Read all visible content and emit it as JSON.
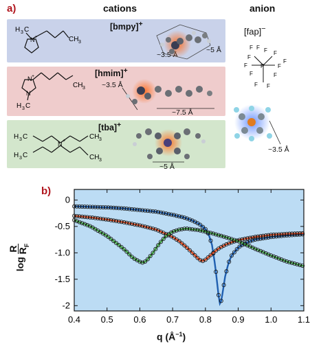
{
  "panel_a": {
    "label": "a)",
    "cations_header": "cations",
    "anion_header": "anion",
    "cations": [
      {
        "name": "[bmpy]",
        "charge": "+",
        "dims": [
          "~3.5 Å",
          "~5 Å"
        ],
        "band_color": "#c9d2ea"
      },
      {
        "name": "[hmim]",
        "charge": "+",
        "dims": [
          "~3.5 Å",
          "~7.5 Å"
        ],
        "band_color": "#efcccc"
      },
      {
        "name": "[tba]",
        "charge": "+",
        "dims": [
          "~5 Å"
        ],
        "band_color": "#d3e6cc"
      }
    ],
    "anion": {
      "name": "[fap]",
      "charge": "−",
      "dims": [
        "~3.5 Å"
      ]
    }
  },
  "panel_b": {
    "label": "b)",
    "ylabel_log": "log",
    "ylabel_num": "R",
    "ylabel_den": "R",
    "ylabel_den_sub": "F",
    "xlabel": "q (Å",
    "xlabel_sup": "−1",
    "xlabel_close": ")",
    "background": "#bcdcf4"
  },
  "chart_data": {
    "type": "line",
    "xlim": [
      0.4,
      1.1
    ],
    "ylim": [
      -2.1,
      0.2
    ],
    "x_ticks": [
      0.4,
      0.5,
      0.6,
      0.7,
      0.8,
      0.9,
      1.0,
      1.1
    ],
    "x_tick_labels": [
      "0.4",
      "0.5",
      "0.6",
      "0.7",
      "0.8",
      "0.9",
      "1.0",
      "1.1"
    ],
    "y_ticks": [
      0,
      -0.5,
      -1,
      -1.5,
      -2
    ],
    "y_tick_labels": [
      "0",
      "-0.5",
      "-1.0",
      "-1.5",
      "-2"
    ],
    "series": [
      {
        "color": "#1f5fb0",
        "x": [
          0.4,
          0.45,
          0.5,
          0.55,
          0.6,
          0.65,
          0.7,
          0.72,
          0.74,
          0.76,
          0.78,
          0.8,
          0.81,
          0.82,
          0.83,
          0.84,
          0.845,
          0.85,
          0.86,
          0.87,
          0.88,
          0.9,
          0.92,
          0.95,
          1.0,
          1.05,
          1.1
        ],
        "y": [
          -0.12,
          -0.13,
          -0.14,
          -0.16,
          -0.19,
          -0.22,
          -0.28,
          -0.31,
          -0.34,
          -0.39,
          -0.45,
          -0.55,
          -0.65,
          -0.85,
          -1.25,
          -1.8,
          -2.0,
          -1.85,
          -1.45,
          -1.2,
          -1.05,
          -0.9,
          -0.82,
          -0.75,
          -0.7,
          -0.67,
          -0.65
        ]
      },
      {
        "color": "#d9461c",
        "x": [
          0.4,
          0.45,
          0.5,
          0.55,
          0.6,
          0.65,
          0.7,
          0.72,
          0.74,
          0.76,
          0.78,
          0.79,
          0.8,
          0.82,
          0.84,
          0.86,
          0.88,
          0.9,
          0.95,
          1.0,
          1.05,
          1.1
        ],
        "y": [
          -0.3,
          -0.33,
          -0.37,
          -0.42,
          -0.48,
          -0.56,
          -0.7,
          -0.78,
          -0.88,
          -1.0,
          -1.12,
          -1.16,
          -1.13,
          -1.02,
          -0.92,
          -0.85,
          -0.8,
          -0.76,
          -0.7,
          -0.66,
          -0.64,
          -0.63
        ]
      },
      {
        "color": "#3c9a3a",
        "x": [
          0.4,
          0.45,
          0.5,
          0.55,
          0.58,
          0.6,
          0.61,
          0.62,
          0.64,
          0.66,
          0.68,
          0.7,
          0.72,
          0.74,
          0.78,
          0.82,
          0.86,
          0.9,
          0.95,
          1.0,
          1.05,
          1.1
        ],
        "y": [
          -0.38,
          -0.5,
          -0.68,
          -0.92,
          -1.1,
          -1.17,
          -1.19,
          -1.15,
          -1.0,
          -0.82,
          -0.68,
          -0.6,
          -0.56,
          -0.54,
          -0.57,
          -0.63,
          -0.7,
          -0.78,
          -0.92,
          -1.05,
          -1.17,
          -1.25
        ]
      }
    ]
  }
}
